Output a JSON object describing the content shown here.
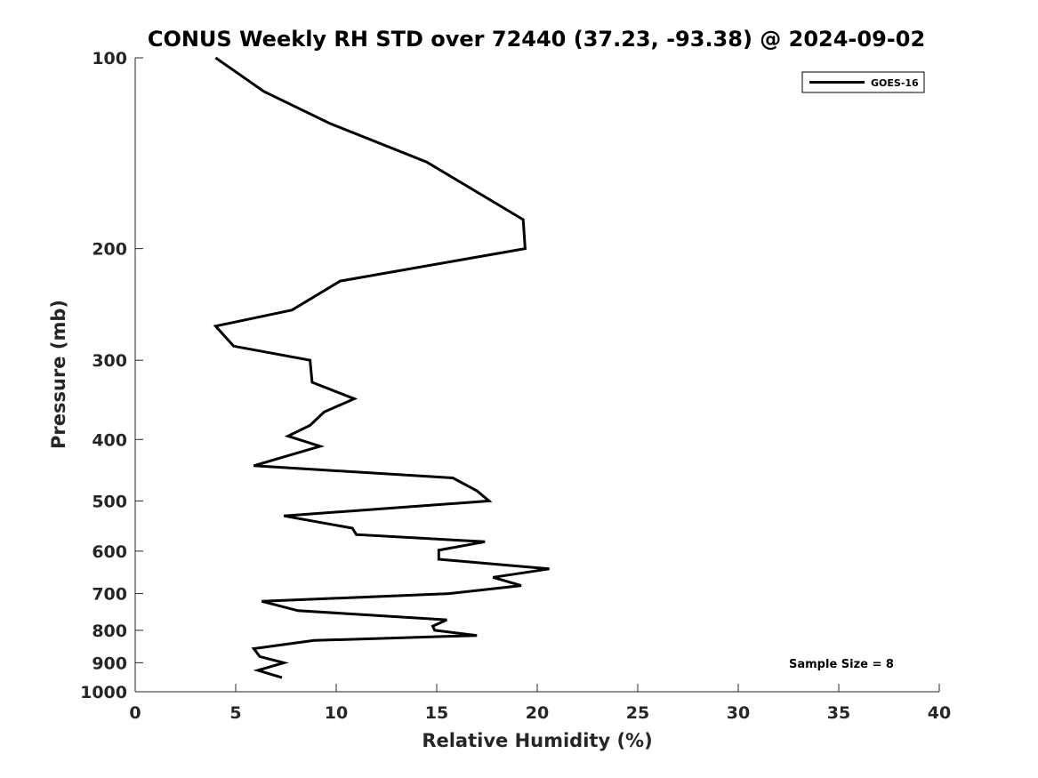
{
  "chart_data": {
    "type": "line",
    "title": "CONUS Weekly RH STD over 72440 (37.23, -93.38) @ 2024-09-02",
    "xlabel": "Relative Humidity (%)",
    "ylabel": "Pressure (mb)",
    "xlim": [
      0,
      40
    ],
    "ylim": [
      100,
      1000
    ],
    "y_scale": "log",
    "y_reversed": true,
    "x_ticks": [
      "0",
      "5",
      "10",
      "15",
      "20",
      "25",
      "30",
      "35",
      "40"
    ],
    "y_ticks": [
      "100",
      "200",
      "300",
      "400",
      "500",
      "600",
      "700",
      "800",
      "900",
      "1000"
    ],
    "grid": false,
    "legend_position": "top-right",
    "annotation": "Sample Size = 8",
    "series": [
      {
        "name": "GOES-16",
        "color": "#000000",
        "x": [
          4.0,
          6.4,
          9.7,
          14.5,
          19.3,
          19.4,
          10.2,
          7.8,
          4.0,
          4.9,
          8.7,
          8.8,
          10.9,
          9.4,
          8.7,
          7.6,
          9.2,
          5.9,
          15.8,
          17.0,
          17.6,
          7.4,
          10.8,
          11.0,
          17.4,
          15.1,
          15.1,
          20.6,
          17.8,
          19.2,
          15.6,
          6.3,
          8.1,
          15.5,
          14.8,
          14.9,
          17.0,
          8.9,
          5.9,
          6.2,
          7.4,
          6.1,
          7.3
        ],
        "y": [
          100,
          113,
          127,
          146,
          180,
          200,
          225,
          250,
          265,
          285,
          300,
          325,
          345,
          362,
          380,
          395,
          410,
          440,
          460,
          482,
          500,
          528,
          552,
          565,
          580,
          598,
          618,
          640,
          660,
          680,
          700,
          720,
          745,
          770,
          788,
          800,
          815,
          830,
          855,
          880,
          900,
          925,
          950
        ]
      }
    ]
  }
}
